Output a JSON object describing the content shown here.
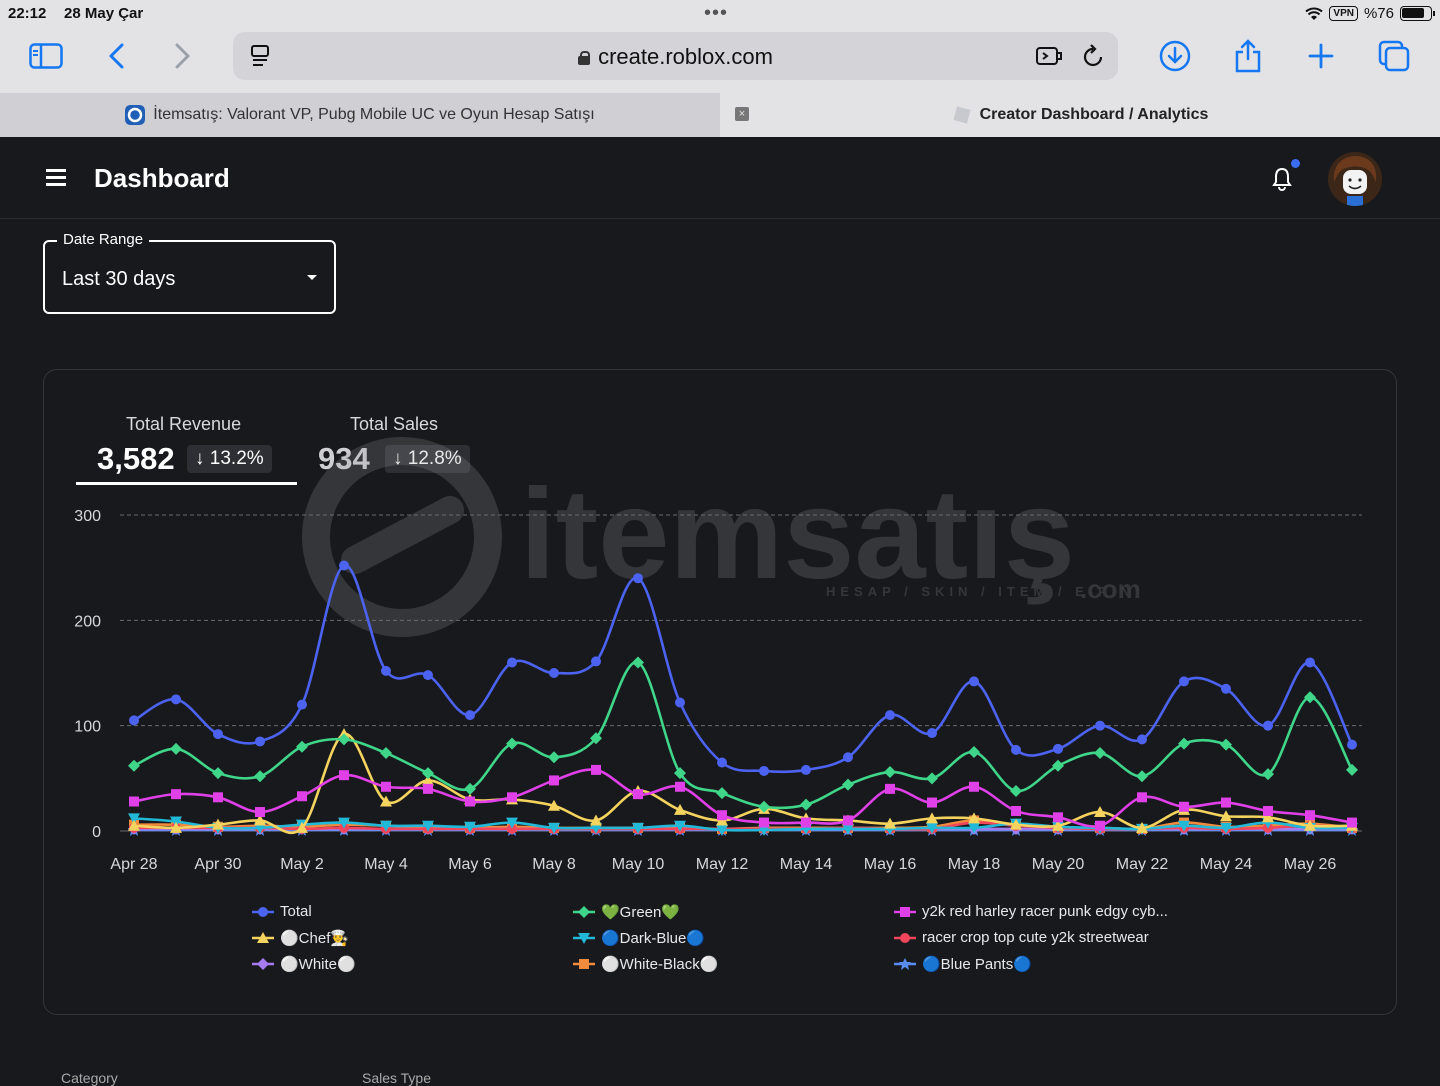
{
  "status_bar": {
    "time": "22:12",
    "date": "28 May Çar",
    "battery": "%76",
    "vpn": "VPN"
  },
  "browser": {
    "url": "create.roblox.com",
    "tabs": [
      {
        "title": "İtemsatış: Valorant VP, Pubg Mobile UC ve Oyun Hesap Satışı",
        "active": false
      },
      {
        "title": "Creator Dashboard / Analytics",
        "active": true
      }
    ]
  },
  "app": {
    "title": "Dashboard"
  },
  "date_range": {
    "label": "Date Range",
    "value": "Last 30 days"
  },
  "kpis": [
    {
      "label": "Total Revenue",
      "value": "3,582",
      "change": "↓ 13.2%"
    },
    {
      "label": "Total Sales",
      "value": "934",
      "change": "↓ 12.8%"
    }
  ],
  "watermark": {
    "brand": "itemsatış",
    "tagline": "HESAP / SKIN / ITEM / E-PIN",
    "suffix": ".com"
  },
  "bottom_labels": [
    "Category",
    "Sales Type"
  ],
  "colors": {
    "Total": "#4b63f0",
    "Green": "#3fd68a",
    "y2k": "#e040e8",
    "Chef": "#f4d35e",
    "DarkBlue": "#22b8d8",
    "racer": "#f0455a",
    "White": "#a77bf0",
    "WhiteBlack": "#f08a3c",
    "BluePants": "#5a8cf5"
  },
  "chart_data": {
    "type": "line",
    "ylim": [
      0,
      300
    ],
    "yticks": [
      "300",
      "200",
      "100",
      "0"
    ],
    "xticks": [
      "Apr 28",
      "Apr 30",
      "May 2",
      "May 4",
      "May 6",
      "May 8",
      "May 10",
      "May 12",
      "May 14",
      "May 16",
      "May 18",
      "May 20",
      "May 22",
      "May 24",
      "May 26"
    ],
    "series": [
      {
        "name": "Total",
        "color": "#4b63f0",
        "marker": "circle",
        "values": [
          105,
          125,
          92,
          85,
          120,
          252,
          152,
          148,
          110,
          160,
          150,
          161,
          240,
          122,
          65,
          57,
          58,
          70,
          110,
          93,
          142,
          77,
          78,
          100,
          87,
          142,
          135,
          100,
          160,
          82
        ]
      },
      {
        "name": "💚Green💚",
        "color": "#3fd68a",
        "marker": "diamond",
        "values": [
          62,
          78,
          55,
          52,
          80,
          87,
          74,
          55,
          40,
          83,
          70,
          88,
          160,
          55,
          36,
          23,
          25,
          44,
          56,
          50,
          75,
          38,
          62,
          74,
          52,
          83,
          82,
          54,
          127,
          58
        ]
      },
      {
        "name": "y2k red harley racer punk edgy cyb...",
        "color": "#e040e8",
        "marker": "square",
        "values": [
          28,
          35,
          32,
          18,
          33,
          53,
          42,
          40,
          28,
          32,
          48,
          58,
          35,
          42,
          15,
          8,
          8,
          10,
          40,
          27,
          42,
          19,
          13,
          5,
          32,
          23,
          27,
          19,
          15,
          8
        ]
      },
      {
        "name": "⚪Chef👨‍🍳",
        "color": "#f4d35e",
        "marker": "triangle",
        "values": [
          5,
          3,
          6,
          10,
          3,
          92,
          28,
          48,
          30,
          30,
          24,
          10,
          38,
          20,
          10,
          21,
          12,
          10,
          7,
          12,
          12,
          6,
          5,
          18,
          3,
          20,
          14,
          13,
          5,
          5
        ]
      },
      {
        "name": "🔵Dark-Blue🔵",
        "color": "#22b8d8",
        "marker": "triangle-down",
        "values": [
          12,
          9,
          3,
          3,
          6,
          8,
          5,
          5,
          4,
          8,
          3,
          3,
          3,
          5,
          1,
          1,
          2,
          2,
          2,
          3,
          3,
          7,
          4,
          3,
          2,
          5,
          3,
          8,
          3,
          3
        ]
      },
      {
        "name": "racer crop top cute y2k streetwear",
        "color": "#f0455a",
        "marker": "circle",
        "values": [
          3,
          3,
          3,
          3,
          2,
          3,
          2,
          2,
          2,
          2,
          2,
          2,
          2,
          2,
          2,
          2,
          2,
          3,
          2,
          2,
          8,
          5,
          3,
          2,
          2,
          3,
          2,
          3,
          5,
          3
        ]
      },
      {
        "name": "⚪White⚪",
        "color": "#a77bf0",
        "marker": "diamond",
        "values": [
          2,
          2,
          2,
          2,
          2,
          2,
          2,
          2,
          2,
          2,
          2,
          2,
          2,
          2,
          2,
          2,
          2,
          2,
          2,
          2,
          2,
          2,
          2,
          2,
          2,
          2,
          2,
          2,
          2,
          2
        ]
      },
      {
        "name": "⚪White-Black⚪",
        "color": "#f08a3c",
        "marker": "square",
        "values": [
          6,
          6,
          4,
          5,
          4,
          6,
          5,
          3,
          3,
          4,
          3,
          3,
          3,
          3,
          2,
          3,
          3,
          3,
          3,
          4,
          10,
          6,
          3,
          3,
          2,
          8,
          4,
          5,
          7,
          3
        ]
      },
      {
        "name": "🔵Blue Pants🔵",
        "color": "#5a8cf5",
        "marker": "star",
        "values": [
          1,
          1,
          1,
          1,
          1,
          1,
          1,
          1,
          1,
          1,
          1,
          1,
          1,
          1,
          1,
          1,
          1,
          1,
          1,
          1,
          1,
          1,
          1,
          1,
          1,
          1,
          1,
          1,
          1,
          1
        ]
      }
    ],
    "legend": [
      [
        "Total",
        "⚪Chef👨‍🍳",
        "⚪White⚪"
      ],
      [
        "💚Green💚",
        "🔵Dark-Blue🔵",
        "⚪White-Black⚪"
      ],
      [
        "y2k red harley racer punk edgy cyb...",
        "racer crop top cute y2k streetwear",
        "🔵Blue Pants🔵"
      ]
    ]
  }
}
